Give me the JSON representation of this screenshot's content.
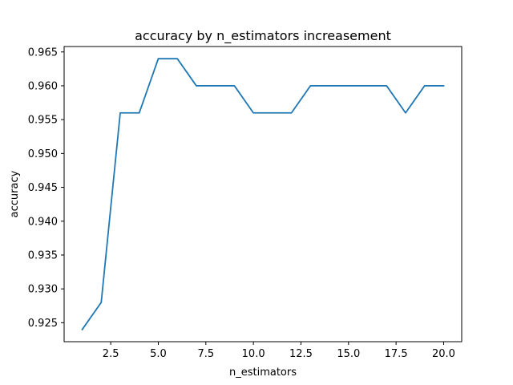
{
  "chart_data": {
    "type": "line",
    "title": "accuracy by n_estimators increasement",
    "xlabel": "n_estimators",
    "ylabel": "accuracy",
    "xlim": [
      0.05,
      20.95
    ],
    "ylim": [
      0.9222,
      0.9658
    ],
    "xticks": [
      2.5,
      5.0,
      7.5,
      10.0,
      12.5,
      15.0,
      17.5,
      20.0
    ],
    "xtick_labels": [
      "2.5",
      "5.0",
      "7.5",
      "10.0",
      "12.5",
      "15.0",
      "17.5",
      "20.0"
    ],
    "yticks": [
      0.925,
      0.93,
      0.935,
      0.94,
      0.945,
      0.95,
      0.955,
      0.96,
      0.965
    ],
    "ytick_labels": [
      "0.925",
      "0.930",
      "0.935",
      "0.940",
      "0.945",
      "0.950",
      "0.955",
      "0.960",
      "0.965"
    ],
    "grid": false,
    "series": [
      {
        "color": "#1f77b4",
        "x": [
          1,
          2,
          3,
          4,
          5,
          6,
          7,
          8,
          9,
          10,
          11,
          12,
          13,
          14,
          15,
          16,
          17,
          18,
          19,
          20
        ],
        "y": [
          0.924,
          0.928,
          0.956,
          0.956,
          0.964,
          0.964,
          0.96,
          0.96,
          0.96,
          0.956,
          0.956,
          0.956,
          0.96,
          0.96,
          0.96,
          0.96,
          0.96,
          0.956,
          0.96,
          0.96
        ]
      }
    ]
  }
}
